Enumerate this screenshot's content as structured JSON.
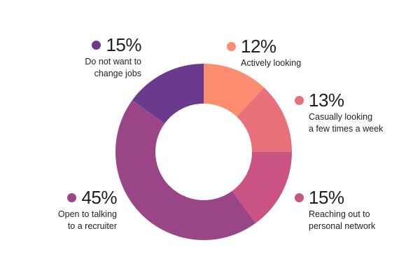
{
  "chart_data": {
    "type": "pie",
    "categories": [
      "Actively looking",
      "Casually looking a few times a week",
      "Reaching out to personal network",
      "Open to talking to a recruiter",
      "Do not want to change jobs"
    ],
    "values": [
      12,
      13,
      15,
      45,
      15
    ],
    "colors": [
      "#fc8c6f",
      "#e8707a",
      "#c95483",
      "#9b4589",
      "#6a3b8c"
    ],
    "title": "",
    "donut": true
  },
  "labels": [
    {
      "pct": "12%",
      "line1": "Actively looking",
      "line2": ""
    },
    {
      "pct": "13%",
      "line1": "Casually looking",
      "line2": "a few times a week"
    },
    {
      "pct": "15%",
      "line1": "Reaching out to",
      "line2": "personal network"
    },
    {
      "pct": "45%",
      "line1": "Open to talking",
      "line2": "to a recruiter"
    },
    {
      "pct": "15%",
      "line1": "Do not want to",
      "line2": "change jobs"
    }
  ]
}
